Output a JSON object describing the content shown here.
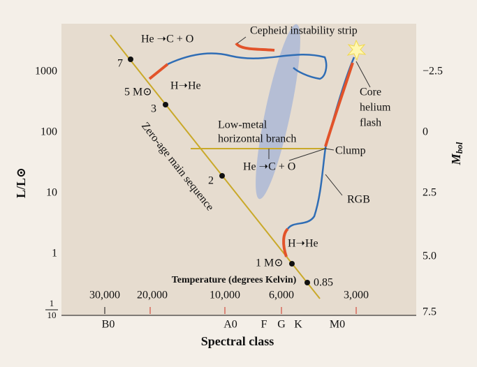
{
  "left_axis": {
    "label": "L/L⊙",
    "ticks": [
      "1000",
      "100",
      "10",
      "1"
    ],
    "fraction": {
      "numerator": "1",
      "denominator": "10"
    }
  },
  "right_axis": {
    "symbol": "M",
    "subscript": "bol",
    "ticks": [
      "−2.5",
      "0",
      "2.5",
      "5.0",
      "7.5"
    ]
  },
  "temperature": {
    "label": "Temperature (degrees Kelvin)",
    "ticks": [
      "30,000",
      "20,000",
      "10,000",
      "6,000",
      "3,000"
    ]
  },
  "spectral": {
    "label": "Spectral class",
    "ticks": [
      "B0",
      "A0",
      "F",
      "G",
      "K",
      "M0"
    ]
  },
  "masses": [
    "7",
    "5 M⊙",
    "3",
    "2",
    "1 M⊙",
    "0.85"
  ],
  "annotations": {
    "he_c_o_top": "He ➝C + O",
    "cepheid": "Cepheid instability strip",
    "h_he_top": "H➝He",
    "core_flash": [
      "Core",
      "helium",
      "flash"
    ],
    "horizontal_branch": [
      "Low-metal",
      "horizontal branch"
    ],
    "he_c_o_bottom": "He ➝C + O",
    "clump": "Clump",
    "rgb": "RGB",
    "h_he_bottom": "H➝He",
    "zams": "Zero-age main sequence"
  }
}
